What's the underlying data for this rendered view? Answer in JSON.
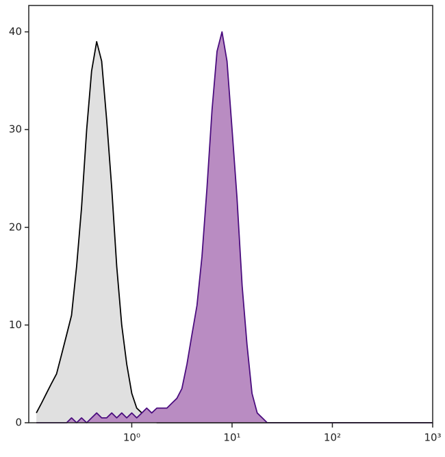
{
  "chart_data": {
    "type": "histogram-overlay",
    "x": [
      0.112,
      0.126,
      0.141,
      0.158,
      0.178,
      0.2,
      0.224,
      0.251,
      0.282,
      0.316,
      0.355,
      0.398,
      0.447,
      0.501,
      0.562,
      0.631,
      0.708,
      0.794,
      0.891,
      1,
      1.12,
      1.26,
      1.41,
      1.58,
      1.78,
      2,
      2.24,
      2.51,
      2.82,
      3.16,
      3.55,
      3.98,
      4.47,
      5.01,
      5.62,
      6.31,
      7.08,
      7.94,
      8.91,
      10,
      11.2,
      12.6,
      14.1,
      15.8,
      17.8,
      20,
      22.4,
      25.1,
      31.6,
      100,
      316,
      1000
    ],
    "series": [
      {
        "color": "#e0e0e0",
        "line_color": "#000000",
        "values": [
          1,
          2,
          3,
          4,
          5,
          7,
          9,
          11,
          16,
          22,
          30,
          36,
          39,
          37,
          31,
          24,
          16,
          10,
          6,
          3,
          1.5,
          1,
          0.5,
          0.5,
          0,
          0,
          0,
          0,
          0,
          0,
          0,
          0,
          0,
          0,
          0,
          0,
          0,
          0,
          0,
          0,
          0,
          0,
          0,
          0,
          0,
          0,
          0,
          0,
          0,
          0,
          0,
          0
        ]
      },
      {
        "color": "#b98cc2",
        "line_color": "#4a0c7e",
        "values": [
          0,
          0,
          0,
          0,
          0,
          0,
          0,
          0.5,
          0,
          0.5,
          0,
          0.5,
          1,
          0.5,
          0.5,
          1,
          0.5,
          1,
          0.5,
          1,
          0.5,
          1,
          1.5,
          1,
          1.5,
          1.5,
          1.5,
          2,
          2.5,
          3.5,
          6,
          9,
          12,
          17,
          24,
          32,
          38,
          40,
          37,
          30,
          23,
          14,
          8,
          3,
          1,
          0.5,
          0,
          0,
          0,
          0,
          0,
          0
        ]
      }
    ],
    "xscale": "log",
    "xlim": [
      0.094,
      1000
    ],
    "xticks": [
      {
        "value": 1,
        "label": "10⁰"
      },
      {
        "value": 10,
        "label": "10¹"
      },
      {
        "value": 100,
        "label": "10²"
      },
      {
        "value": 1000,
        "label": "10³"
      }
    ],
    "ylim": [
      0,
      42.7
    ],
    "yticks": [
      0,
      10,
      20,
      30,
      40
    ]
  }
}
